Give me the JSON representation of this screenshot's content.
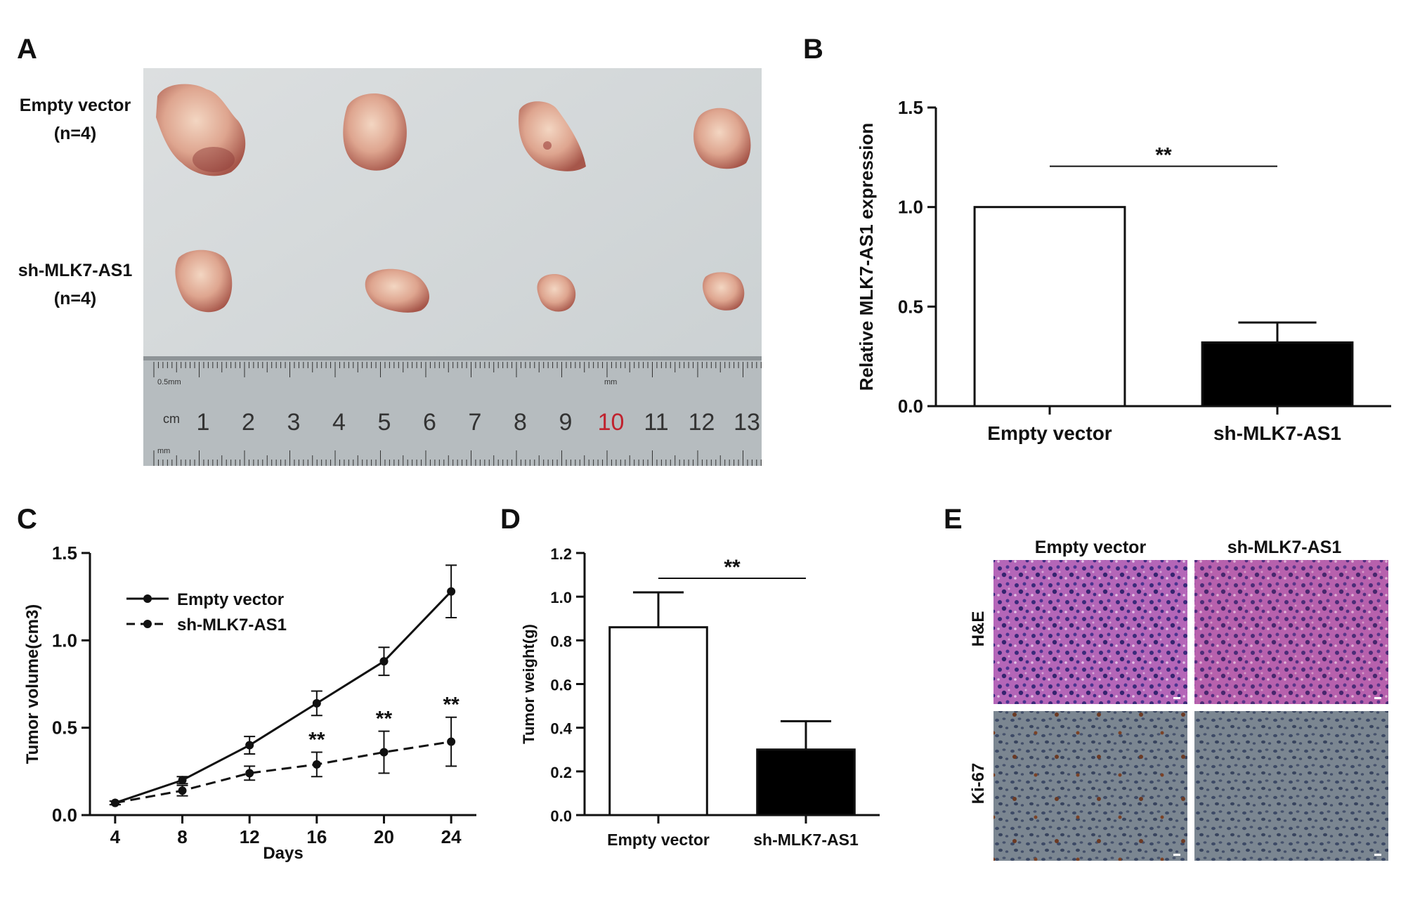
{
  "panels": {
    "A": {
      "letter": "A",
      "group1": {
        "label": "Empty vector",
        "n": "(n=4)"
      },
      "group2": {
        "label": "sh-MLK7-AS1",
        "n": "(n=4)"
      },
      "ruler": {
        "unit": "cm",
        "small_text_top": "0.5mm",
        "small_text_mid": "mm",
        "small_text_bottom": "mm",
        "numbers": [
          "1",
          "2",
          "3",
          "4",
          "5",
          "6",
          "7",
          "8",
          "9",
          "10",
          "11",
          "12",
          "13"
        ],
        "highlight": "10",
        "highlight_color": "#c0222e"
      }
    },
    "B": {
      "letter": "B"
    },
    "C": {
      "letter": "C"
    },
    "D": {
      "letter": "D"
    },
    "E": {
      "letter": "E",
      "col_labels": [
        "Empty vector",
        "sh-MLK7-AS1"
      ],
      "row_labels": [
        "H&E",
        "Ki-67"
      ]
    }
  },
  "chart_data": [
    {
      "id": "B",
      "type": "bar",
      "ylabel": "Relative MLK7-AS1 expression",
      "categories": [
        "Empty vector",
        "sh-MLK7-AS1"
      ],
      "values": [
        1.0,
        0.32
      ],
      "errors": [
        0,
        0.1
      ],
      "bar_fill": [
        "#ffffff",
        "#000000"
      ],
      "ylim": [
        0,
        1.5
      ],
      "yticks": [
        "0.0",
        "0.5",
        "1.0",
        "1.5"
      ],
      "significance": "**"
    },
    {
      "id": "C",
      "type": "line",
      "xlabel": "Days",
      "ylabel": "Tumor volume(cm3)",
      "x": [
        4,
        8,
        12,
        16,
        20,
        24
      ],
      "xticks": [
        "4",
        "8",
        "12",
        "16",
        "20",
        "24"
      ],
      "ylim": [
        0,
        1.5
      ],
      "yticks": [
        "0.0",
        "0.5",
        "1.0",
        "1.5"
      ],
      "series": [
        {
          "name": "Empty vector",
          "style": "solid",
          "values": [
            0.07,
            0.2,
            0.4,
            0.64,
            0.88,
            1.28
          ],
          "errors": [
            0.01,
            0.02,
            0.05,
            0.07,
            0.08,
            0.15
          ]
        },
        {
          "name": "sh-MLK7-AS1",
          "style": "dashed",
          "values": [
            0.07,
            0.14,
            0.24,
            0.29,
            0.36,
            0.42
          ],
          "errors": [
            0.01,
            0.03,
            0.04,
            0.07,
            0.12,
            0.14
          ]
        }
      ],
      "annotations": [
        {
          "x": 16,
          "text": "**"
        },
        {
          "x": 20,
          "text": "**"
        },
        {
          "x": 24,
          "text": "**"
        }
      ]
    },
    {
      "id": "D",
      "type": "bar",
      "ylabel": "Tumor weight(g)",
      "categories": [
        "Empty vector",
        "sh-MLK7-AS1"
      ],
      "values": [
        0.86,
        0.3
      ],
      "errors": [
        0.16,
        0.13
      ],
      "bar_fill": [
        "#ffffff",
        "#000000"
      ],
      "ylim": [
        0,
        1.2
      ],
      "yticks": [
        "0.0",
        "0.2",
        "0.4",
        "0.6",
        "0.8",
        "1.0",
        "1.2"
      ],
      "significance": "**"
    }
  ]
}
